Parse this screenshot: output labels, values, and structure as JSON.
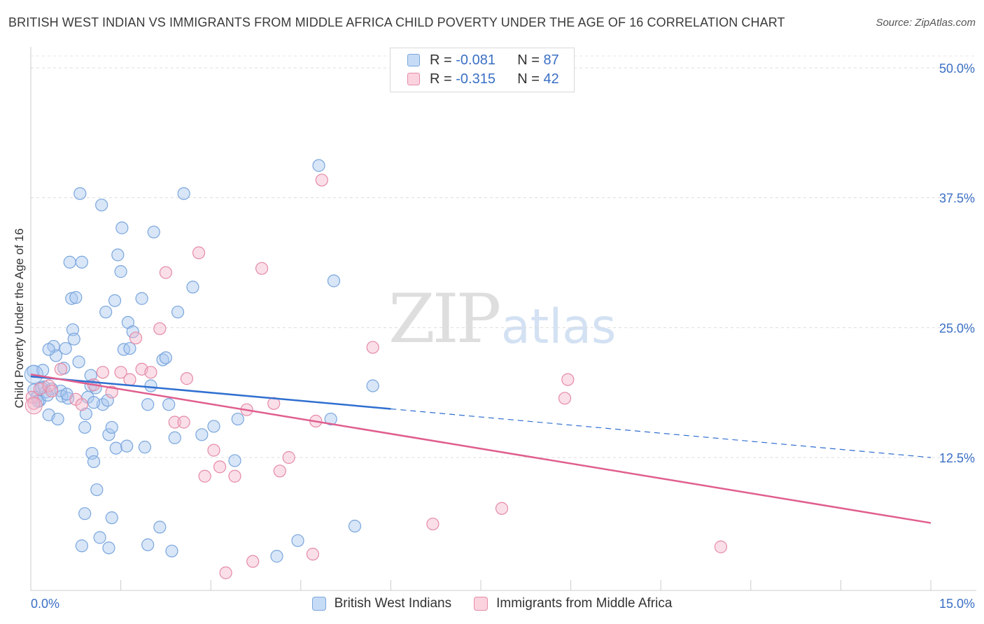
{
  "header": {
    "title": "BRITISH WEST INDIAN VS IMMIGRANTS FROM MIDDLE AFRICA CHILD POVERTY UNDER THE AGE OF 16 CORRELATION CHART",
    "source": "Source: ZipAtlas.com"
  },
  "watermark": {
    "zip": "ZIP",
    "atlas": "atlas"
  },
  "legend_top": {
    "rows": [
      {
        "r_label": "R =",
        "r_value": "-0.081",
        "n_label": "N =",
        "n_value": "87",
        "color": "#a9c8f0"
      },
      {
        "r_label": "R =",
        "r_value": "-0.315",
        "n_label": "N =",
        "n_value": "42",
        "color": "#f5b8cb"
      }
    ]
  },
  "chart_data": {
    "type": "scatter",
    "title": "BRITISH WEST INDIAN VS IMMIGRANTS FROM MIDDLE AFRICA CHILD POVERTY UNDER THE AGE OF 16 CORRELATION CHART",
    "xlabel": "",
    "ylabel": "Child Poverty Under the Age of 16",
    "xlim": [
      0,
      15
    ],
    "ylim": [
      1,
      51
    ],
    "x_tick_labels": [
      "0.0%",
      "15.0%"
    ],
    "y_tick_labels": [
      "12.5%",
      "25.0%",
      "37.5%",
      "50.0%"
    ],
    "y_ticks": [
      12.5,
      25,
      37.5,
      50
    ],
    "grid": true,
    "legend_position": "bottom",
    "series": [
      {
        "name": "British West Indians",
        "color": "#a9c8f0",
        "stroke": "#7aa6dd",
        "trend": {
          "x": [
            0,
            6.0,
            15
          ],
          "y": [
            20.3,
            17.2,
            12.5
          ],
          "solid_until": 6.0,
          "color": "#2f6fd0"
        },
        "points": [
          [
            0.04,
            20.8
          ],
          [
            0.05,
            19.0
          ],
          [
            0.1,
            18.3
          ],
          [
            0.15,
            18.0
          ],
          [
            0.2,
            20.9
          ],
          [
            0.22,
            19.3
          ],
          [
            0.25,
            18.8
          ],
          [
            0.3,
            16.6
          ],
          [
            0.35,
            19.1
          ],
          [
            0.38,
            23.2
          ],
          [
            0.42,
            22.3
          ],
          [
            0.45,
            16.2
          ],
          [
            0.5,
            18.9
          ],
          [
            0.52,
            18.4
          ],
          [
            0.55,
            21.1
          ],
          [
            0.58,
            23.0
          ],
          [
            0.62,
            18.2
          ],
          [
            0.65,
            31.3
          ],
          [
            0.68,
            27.8
          ],
          [
            0.7,
            24.8
          ],
          [
            0.72,
            23.9
          ],
          [
            0.75,
            27.9
          ],
          [
            0.8,
            21.7
          ],
          [
            0.82,
            37.9
          ],
          [
            0.85,
            31.3
          ],
          [
            0.9,
            15.4
          ],
          [
            0.95,
            18.3
          ],
          [
            1.0,
            20.4
          ],
          [
            1.0,
            19.4
          ],
          [
            1.02,
            12.9
          ],
          [
            1.05,
            12.1
          ],
          [
            1.08,
            19.2
          ],
          [
            1.1,
            9.4
          ],
          [
            1.15,
            4.8
          ],
          [
            1.18,
            36.8
          ],
          [
            1.2,
            17.6
          ],
          [
            1.25,
            26.5
          ],
          [
            1.28,
            18.0
          ],
          [
            1.3,
            14.7
          ],
          [
            1.35,
            15.4
          ],
          [
            1.4,
            27.6
          ],
          [
            1.42,
            13.4
          ],
          [
            1.45,
            32.0
          ],
          [
            1.5,
            30.4
          ],
          [
            1.52,
            34.6
          ],
          [
            1.55,
            22.9
          ],
          [
            1.6,
            13.6
          ],
          [
            1.62,
            25.5
          ],
          [
            1.65,
            23.0
          ],
          [
            1.7,
            24.6
          ],
          [
            1.85,
            27.8
          ],
          [
            1.9,
            13.5
          ],
          [
            1.95,
            17.6
          ],
          [
            2.0,
            19.4
          ],
          [
            2.05,
            34.2
          ],
          [
            2.15,
            5.8
          ],
          [
            2.2,
            21.9
          ],
          [
            2.25,
            22.1
          ],
          [
            2.3,
            17.6
          ],
          [
            2.35,
            3.5
          ],
          [
            2.4,
            14.4
          ],
          [
            2.45,
            26.5
          ],
          [
            2.55,
            37.9
          ],
          [
            2.7,
            28.9
          ],
          [
            2.85,
            14.7
          ],
          [
            3.05,
            15.5
          ],
          [
            3.4,
            12.2
          ],
          [
            3.45,
            16.2
          ],
          [
            4.1,
            3.0
          ],
          [
            4.45,
            4.5
          ],
          [
            4.8,
            40.6
          ],
          [
            5.0,
            16.2
          ],
          [
            5.05,
            29.5
          ],
          [
            5.4,
            5.9
          ],
          [
            5.7,
            19.4
          ],
          [
            0.9,
            7.1
          ],
          [
            1.35,
            6.7
          ],
          [
            0.85,
            4.0
          ],
          [
            1.3,
            3.8
          ],
          [
            1.95,
            4.1
          ],
          [
            0.12,
            17.9
          ],
          [
            0.18,
            19.2
          ],
          [
            0.28,
            18.5
          ],
          [
            0.6,
            18.6
          ],
          [
            0.92,
            16.7
          ],
          [
            1.05,
            17.8
          ],
          [
            0.3,
            22.9
          ]
        ]
      },
      {
        "name": "Immigrants from Middle Africa",
        "color": "#f5b8cb",
        "stroke": "#e58aa6",
        "trend": {
          "x": [
            0,
            15
          ],
          "y": [
            20.5,
            6.2
          ],
          "solid_until": 15,
          "color": "#e05e8e"
        },
        "points": [
          [
            0.02,
            18.3
          ],
          [
            0.05,
            17.7
          ],
          [
            0.15,
            19.1
          ],
          [
            0.3,
            19.4
          ],
          [
            0.35,
            18.9
          ],
          [
            0.5,
            21.0
          ],
          [
            0.75,
            18.1
          ],
          [
            0.85,
            17.6
          ],
          [
            1.05,
            19.5
          ],
          [
            1.2,
            20.7
          ],
          [
            1.35,
            18.8
          ],
          [
            1.5,
            20.7
          ],
          [
            1.65,
            20.0
          ],
          [
            1.75,
            24.0
          ],
          [
            1.85,
            21.0
          ],
          [
            2.0,
            20.7
          ],
          [
            2.15,
            24.9
          ],
          [
            2.25,
            30.3
          ],
          [
            2.4,
            15.9
          ],
          [
            2.55,
            15.9
          ],
          [
            2.6,
            20.1
          ],
          [
            2.8,
            32.2
          ],
          [
            2.9,
            10.7
          ],
          [
            3.05,
            13.2
          ],
          [
            3.15,
            11.6
          ],
          [
            3.25,
            1.4
          ],
          [
            3.4,
            10.7
          ],
          [
            3.6,
            17.1
          ],
          [
            3.7,
            2.5
          ],
          [
            3.85,
            30.7
          ],
          [
            4.05,
            17.7
          ],
          [
            4.15,
            11.2
          ],
          [
            4.3,
            12.5
          ],
          [
            4.7,
            3.2
          ],
          [
            4.75,
            16.0
          ],
          [
            4.85,
            39.2
          ],
          [
            5.7,
            23.1
          ],
          [
            6.7,
            6.1
          ],
          [
            7.85,
            7.6
          ],
          [
            8.9,
            18.2
          ],
          [
            8.95,
            20.0
          ],
          [
            11.5,
            3.9
          ]
        ]
      }
    ]
  },
  "bottom_legend": {
    "items": [
      {
        "label": "British West Indians",
        "color": "#a9c8f0"
      },
      {
        "label": "Immigrants from Middle Africa",
        "color": "#f5b8cb"
      }
    ]
  }
}
